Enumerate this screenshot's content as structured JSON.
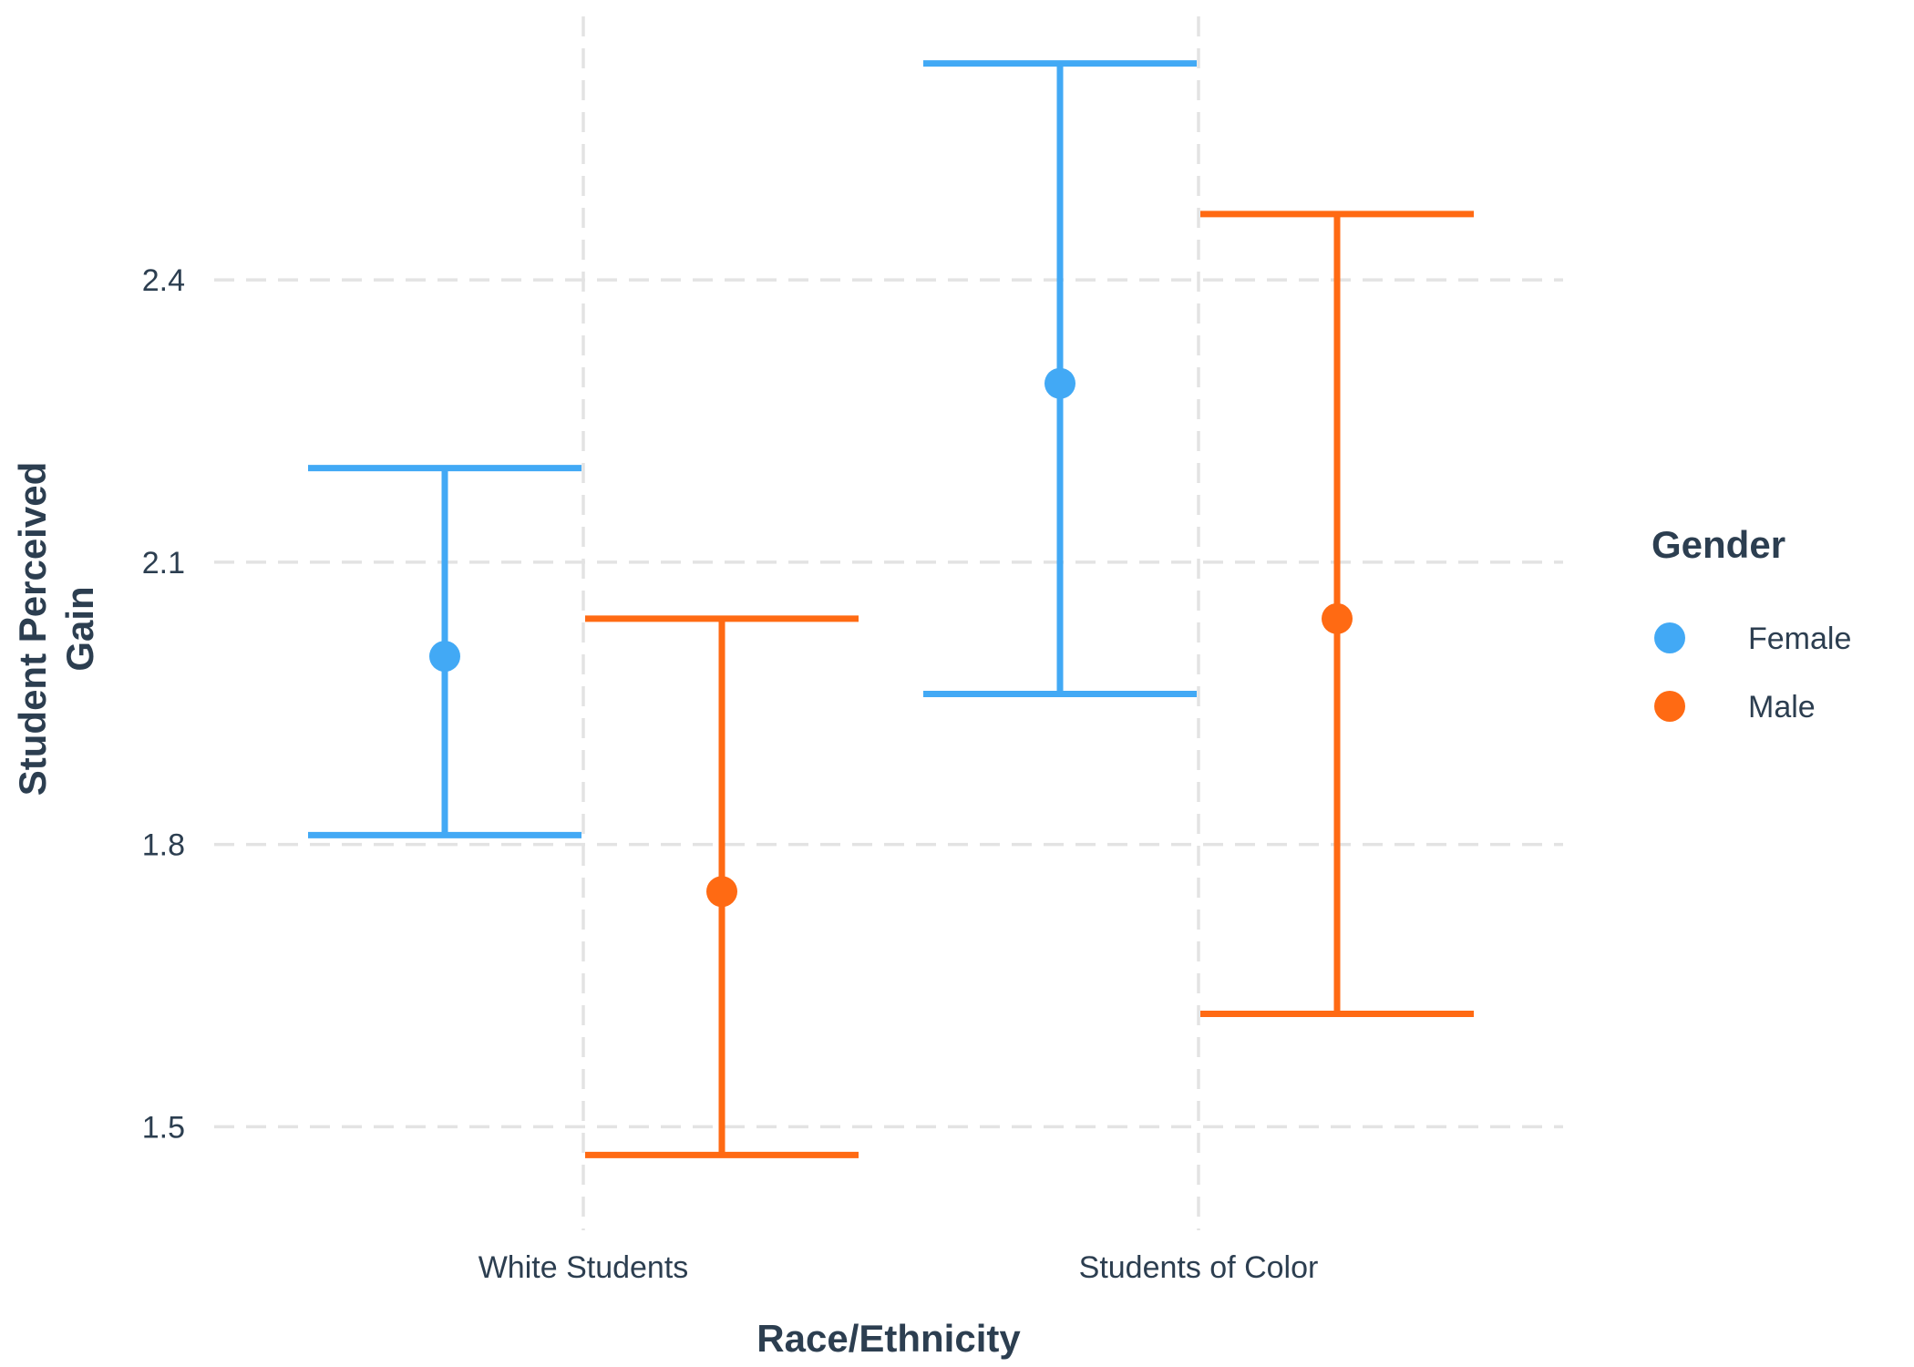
{
  "chart_data": {
    "type": "scatter",
    "categories": [
      "White Students",
      "Students of Color"
    ],
    "xlabel": "Race/Ethnicity",
    "ylabel": [
      "Student Perceived",
      "Gain"
    ],
    "yticks": [
      "1.5",
      "1.8",
      "2.1",
      "2.4"
    ],
    "ylim": [
      1.39,
      2.68
    ],
    "legend": {
      "title": "Gender",
      "position": "right"
    },
    "grid": true,
    "series": [
      {
        "name": "Female",
        "color": "#42a9f5",
        "means": [
          2.0,
          2.29
        ],
        "lower": [
          1.81,
          1.96
        ],
        "upper": [
          2.2,
          2.63
        ]
      },
      {
        "name": "Male",
        "color": "#ff6a13",
        "means": [
          1.75,
          2.04
        ],
        "lower": [
          1.47,
          1.62
        ],
        "upper": [
          2.04,
          2.47
        ]
      }
    ]
  }
}
